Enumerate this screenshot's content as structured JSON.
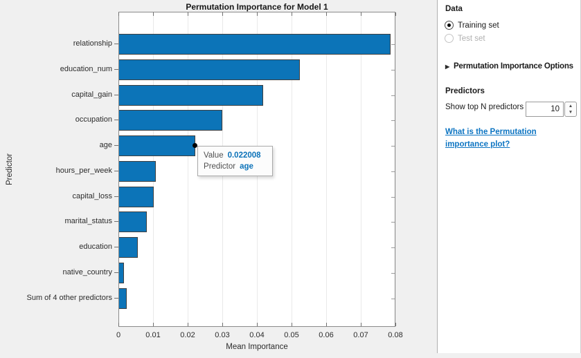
{
  "colors": {
    "accent_blue": "#0b72b9",
    "bar_fill": "#0c74b8",
    "bar_edge": "#3f3f3f",
    "link_blue": "#0c74c2",
    "disabled_text": "#b0b0b0"
  },
  "chart_data": {
    "type": "bar",
    "orientation": "horizontal",
    "title": "Permutation Importance for Model 1",
    "xlabel": "Mean Importance",
    "ylabel": "Predictor",
    "xlim": [
      0,
      0.08
    ],
    "xticks": [
      0,
      0.01,
      0.02,
      0.03,
      0.04,
      0.05,
      0.06,
      0.07,
      0.08
    ],
    "xtick_labels": [
      "0",
      "0.01",
      "0.02",
      "0.03",
      "0.04",
      "0.05",
      "0.06",
      "0.07",
      "0.08"
    ],
    "grid": "vertical",
    "legend": "none",
    "categories": [
      "relationship",
      "education_num",
      "capital_gain",
      "occupation",
      "age",
      "hours_per_week",
      "capital_loss",
      "marital_status",
      "education",
      "native_country",
      "Sum of 4 other predictors"
    ],
    "values": [
      0.0784,
      0.0522,
      0.0416,
      0.0298,
      0.022008,
      0.0106,
      0.01,
      0.008,
      0.0053,
      0.0014,
      0.0021
    ]
  },
  "datatip": {
    "bar_index": 4,
    "rows": [
      {
        "label": "Value",
        "value": "0.022008"
      },
      {
        "label": "Predictor",
        "value": "age"
      }
    ]
  },
  "panel": {
    "data_section": {
      "title": "Data",
      "options": [
        {
          "label": "Training set",
          "selected": true,
          "enabled": true
        },
        {
          "label": "Test set",
          "selected": false,
          "enabled": false
        }
      ]
    },
    "options_section": {
      "collapse_icon": "▶",
      "title": "Permutation Importance Options"
    },
    "predictors_section": {
      "title": "Predictors",
      "spinner_label": "Show top N predictors",
      "spinner_value": "10",
      "spinner_up_icon": "▲",
      "spinner_down_icon": "▼"
    },
    "help_link": {
      "text": "What is the Permutation importance plot?"
    }
  }
}
